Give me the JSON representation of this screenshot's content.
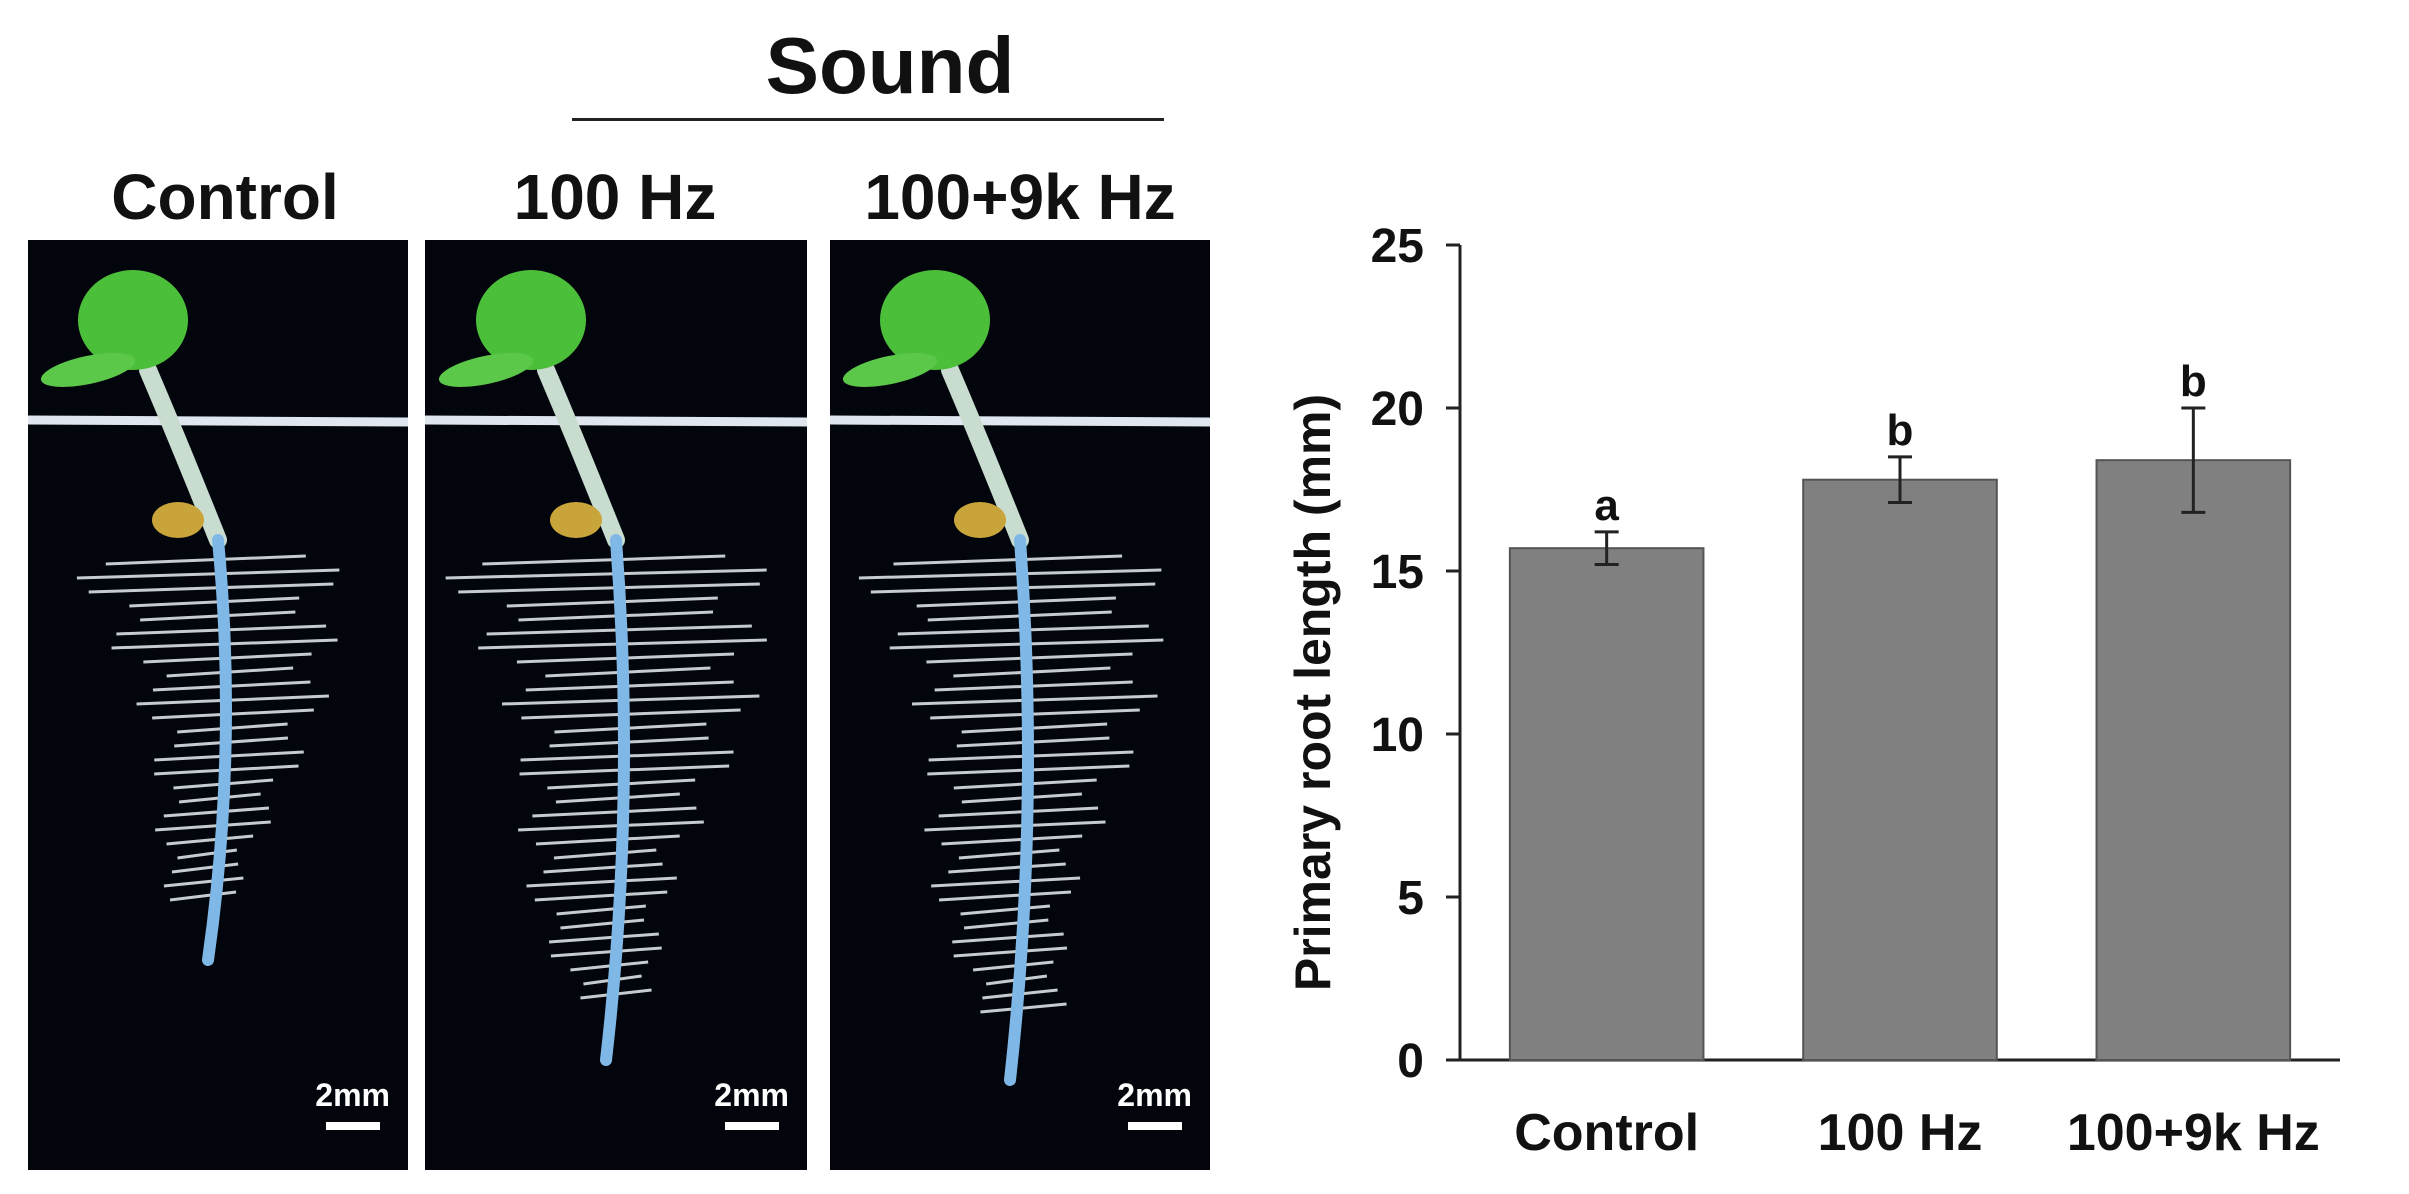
{
  "figure": {
    "sound_label": "Sound",
    "panels": [
      {
        "label": "Control",
        "scale_label": "2mm"
      },
      {
        "label": "100 Hz",
        "scale_label": "2mm"
      },
      {
        "label": "100+9k Hz",
        "scale_label": "2mm"
      }
    ]
  },
  "chart_data": {
    "type": "bar",
    "categories": [
      "Control",
      "100 Hz",
      "100+9k Hz"
    ],
    "values": [
      15.7,
      17.8,
      18.4
    ],
    "errors": [
      0.5,
      0.7,
      1.6
    ],
    "significance_letters": [
      "a",
      "b",
      "b"
    ],
    "ylabel": "Primary root length (mm)",
    "xlabel": "",
    "ylim": [
      0,
      25
    ],
    "yticks": [
      0,
      5,
      10,
      15,
      20,
      25
    ],
    "grid": false,
    "bar_color": "#808080"
  }
}
